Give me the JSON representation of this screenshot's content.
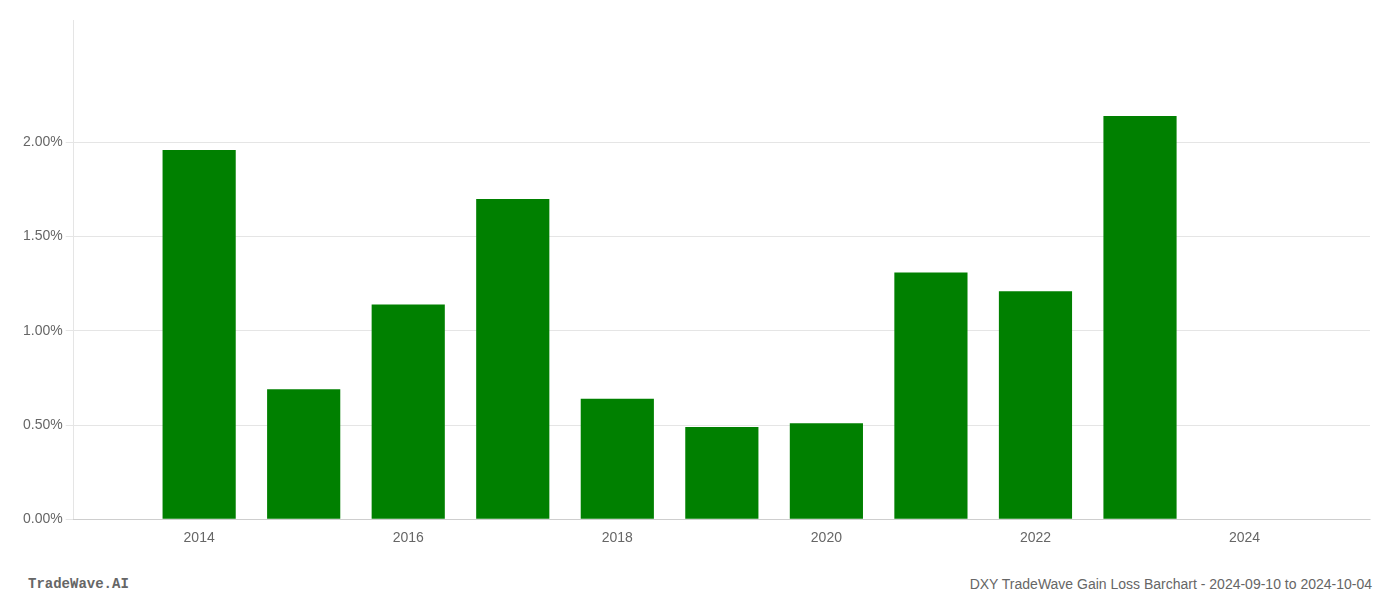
{
  "chart_data": {
    "type": "bar",
    "x": [
      2014,
      2015,
      2016,
      2017,
      2018,
      2019,
      2020,
      2021,
      2022,
      2023
    ],
    "values": [
      0.0196,
      0.0069,
      0.0114,
      0.017,
      0.0064,
      0.0049,
      0.0051,
      0.0131,
      0.0121,
      0.0214
    ],
    "color": "#008000",
    "xlim": [
      2012.8,
      2025.2
    ],
    "xticks": [
      2014,
      2016,
      2018,
      2020,
      2022,
      2024
    ],
    "ylim": [
      0,
      0.0265
    ],
    "yticks": [
      {
        "value": 0.0,
        "label": "0.00%"
      },
      {
        "value": 0.005,
        "label": "0.50%"
      },
      {
        "value": 0.01,
        "label": "1.00%"
      },
      {
        "value": 0.015,
        "label": "1.50%"
      },
      {
        "value": 0.02,
        "label": "2.00%"
      }
    ],
    "grid": "y",
    "annotations": [
      "TradeWave.AI",
      "DXY TradeWave Gain Loss Barchart - 2024-09-10 to 2024-10-04"
    ]
  }
}
